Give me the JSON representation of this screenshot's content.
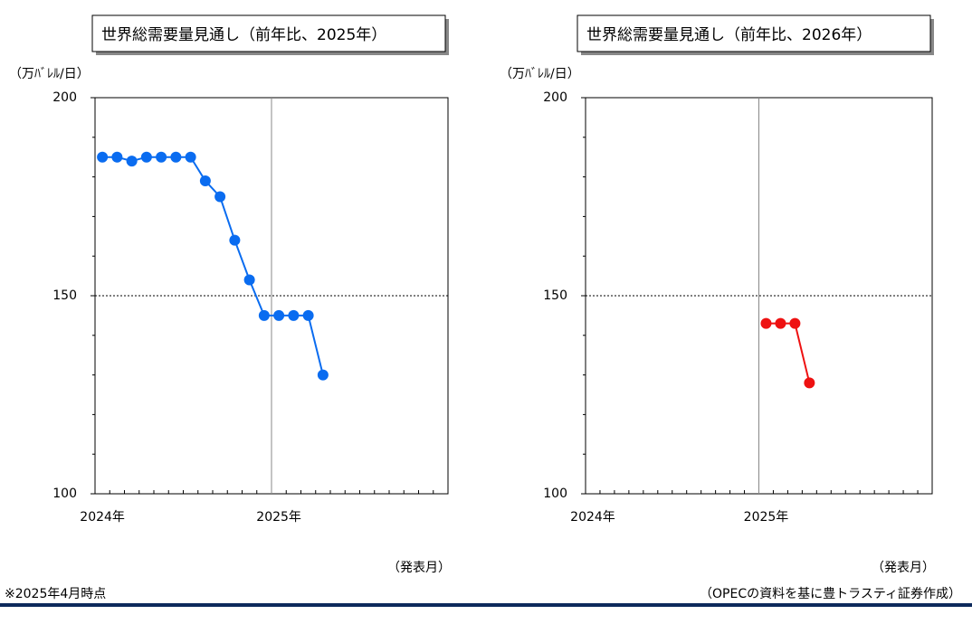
{
  "chart_data": [
    {
      "type": "line",
      "title": "世界総需要量見通し（前年比、2025年）",
      "y_label": "（万ﾊﾞﾚﾙ/日）",
      "x_label": "（発表月）",
      "categories": [
        "2024年",
        null,
        null,
        null,
        null,
        null,
        null,
        null,
        null,
        null,
        null,
        null,
        "2025年",
        null,
        null,
        null,
        null,
        null,
        null,
        null,
        null,
        null,
        null,
        null
      ],
      "series": [
        {
          "name": "2025年",
          "color": "#0a6cf0",
          "values": [
            185,
            185,
            184,
            185,
            185,
            185,
            185,
            179,
            175,
            164,
            154,
            145,
            145,
            145,
            145,
            130,
            null,
            null,
            null,
            null,
            null,
            null,
            null,
            null
          ]
        }
      ],
      "ylim": [
        100,
        200
      ],
      "yticks": [
        100,
        150,
        200
      ],
      "yminor_ticks": [
        110,
        120,
        130,
        140,
        160,
        170,
        180,
        190
      ],
      "hline": 150
    },
    {
      "type": "line",
      "title": "世界総需要量見通し（前年比、2026年）",
      "y_label": "（万ﾊﾞﾚﾙ/日）",
      "x_label": "（発表月）",
      "categories": [
        "2024年",
        null,
        null,
        null,
        null,
        null,
        null,
        null,
        null,
        null,
        null,
        null,
        "2025年",
        null,
        null,
        null,
        null,
        null,
        null,
        null,
        null,
        null,
        null,
        null
      ],
      "series": [
        {
          "name": "2026年",
          "color": "#ee1111",
          "values": [
            null,
            null,
            null,
            null,
            null,
            null,
            null,
            null,
            null,
            null,
            null,
            null,
            143,
            143,
            143,
            128,
            null,
            null,
            null,
            null,
            null,
            null,
            null,
            null
          ]
        }
      ],
      "ylim": [
        100,
        200
      ],
      "yticks": [
        100,
        150,
        200
      ],
      "yminor_ticks": [
        110,
        120,
        130,
        140,
        160,
        170,
        180,
        190
      ],
      "hline": 150
    }
  ],
  "footnote": "※2025年4月時点",
  "source": "（OPECの資料を基に豊トラスティ証券作成）"
}
